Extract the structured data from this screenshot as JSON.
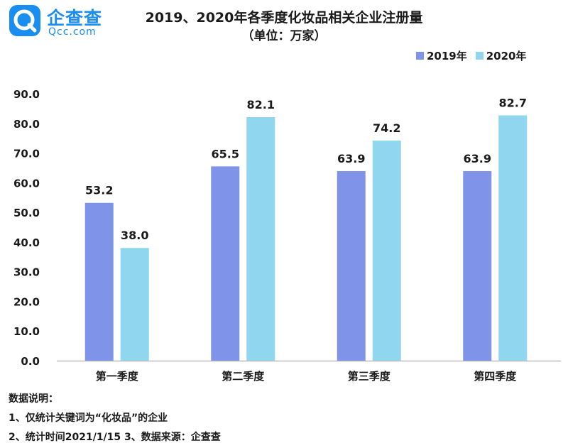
{
  "brand": {
    "name": "企查查",
    "domain": "Qcc.com"
  },
  "chart_data": {
    "type": "bar",
    "title": "2019、2020年各季度化妆品相关企业注册量",
    "subtitle": "（单位：万家）",
    "categories": [
      "第一季度",
      "第二季度",
      "第三季度",
      "第四季度"
    ],
    "series": [
      {
        "name": "2019年",
        "values": [
          53.2,
          65.5,
          63.9,
          63.9
        ],
        "color": "#7f94e8"
      },
      {
        "name": "2020年",
        "values": [
          38.0,
          82.1,
          74.2,
          82.7
        ],
        "color": "#8fd6ee"
      }
    ],
    "ylim": [
      0,
      90
    ],
    "yticks": [
      "0.0",
      "10.0",
      "20.0",
      "30.0",
      "40.0",
      "50.0",
      "60.0",
      "70.0",
      "80.0",
      "90.0"
    ],
    "grid": false,
    "legend_position": "top-right",
    "xlabel": "",
    "ylabel": ""
  },
  "notes": {
    "heading": "数据说明：",
    "line1": "1、仅统计关键词为“化妆品”的企业",
    "line2": "2、统计时间2021/1/15   3、数据来源：企查查"
  }
}
